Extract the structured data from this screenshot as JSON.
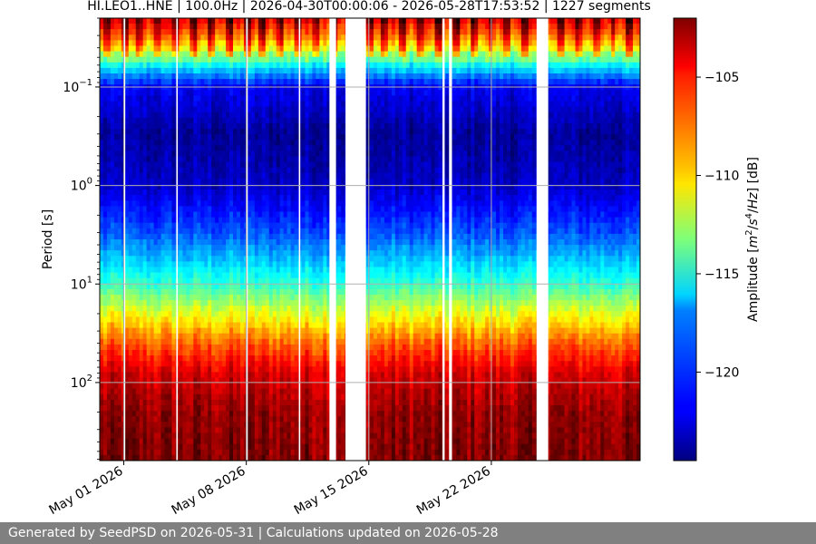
{
  "chart_data": {
    "type": "heatmap",
    "title": "HI.LEO1..HNE | 100.0Hz | 2026-04-30T00:00:06 - 2026-05-28T17:53:52 | 1227 segments",
    "xlabel": "",
    "ylabel": "Period [s]",
    "y_scale": "log",
    "y_inverted": true,
    "ylim": [
      0.02,
      620
    ],
    "y_ticks": [
      {
        "value": 0.1,
        "base": "10",
        "exp": "−1"
      },
      {
        "value": 1,
        "base": "10",
        "exp": "0"
      },
      {
        "value": 10,
        "base": "10",
        "exp": "1"
      },
      {
        "value": 100,
        "base": "10",
        "exp": "2"
      }
    ],
    "x_range": [
      "2026-04-29T15:00",
      "2026-05-30T12:00"
    ],
    "x_ticks": [
      {
        "date": "2026-05-01",
        "label": "May 01 2026"
      },
      {
        "date": "2026-05-08",
        "label": "May 08 2026"
      },
      {
        "date": "2026-05-15",
        "label": "May 15 2026"
      },
      {
        "date": "2026-05-22",
        "label": "May 22 2026"
      }
    ],
    "grid": true,
    "data_gaps": [
      [
        "2026-05-01T00:00",
        "2026-05-01T02:00"
      ],
      [
        "2026-05-04T00:00",
        "2026-05-04T02:00"
      ],
      [
        "2026-05-08T00:00",
        "2026-05-08T02:00"
      ],
      [
        "2026-05-11T00:00",
        "2026-05-11T02:00"
      ],
      [
        "2026-05-12T18:00",
        "2026-05-13T03:00"
      ],
      [
        "2026-05-13T16:00",
        "2026-05-14T20:00"
      ],
      [
        "2026-05-19T05:00",
        "2026-05-19T08:00"
      ],
      [
        "2026-05-19T14:00",
        "2026-05-19T18:00"
      ],
      [
        "2026-05-24T14:00",
        "2026-05-25T06:00"
      ]
    ],
    "colorbar": {
      "label_parts": [
        "Amplitude [",
        "m",
        "2",
        "/",
        "s",
        "4",
        "/",
        "Hz",
        "] [dB]"
      ],
      "range": [
        -124.5,
        -102
      ],
      "colormap": "jet",
      "ticks": [
        -105,
        -110,
        -115,
        -120
      ],
      "tick_labels": [
        "−105",
        "−110",
        "−115",
        "−120"
      ]
    },
    "amplitude_profile": [
      {
        "period": 0.02,
        "db": -103
      },
      {
        "period": 0.03,
        "db": -106
      },
      {
        "period": 0.04,
        "db": -109
      },
      {
        "period": 0.06,
        "db": -116
      },
      {
        "period": 0.1,
        "db": -122
      },
      {
        "period": 0.3,
        "db": -124
      },
      {
        "period": 1,
        "db": -123
      },
      {
        "period": 3,
        "db": -120
      },
      {
        "period": 10,
        "db": -115
      },
      {
        "period": 20,
        "db": -111
      },
      {
        "period": 40,
        "db": -107
      },
      {
        "period": 80,
        "db": -104
      },
      {
        "period": 200,
        "db": -102.5
      },
      {
        "period": 620,
        "db": -102
      }
    ]
  },
  "footer": {
    "text": "Generated by SeedPSD on 2026-05-31 | Calculations updated on 2026-05-28"
  }
}
